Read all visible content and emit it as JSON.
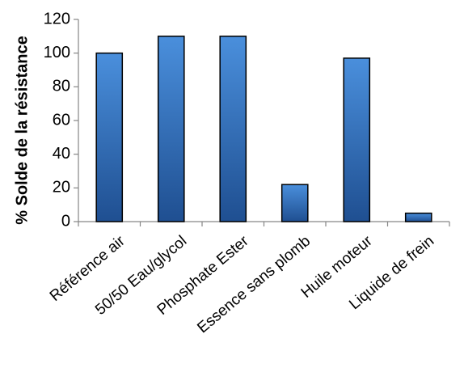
{
  "chart_data": {
    "type": "bar",
    "title": "",
    "xlabel": "",
    "ylabel": "% Solde de la résistance",
    "ylim": [
      0,
      120
    ],
    "yticks": [
      0,
      20,
      40,
      60,
      80,
      100,
      120
    ],
    "grid": false,
    "legend": "none",
    "categories": [
      "Référence air",
      "50/50 Eau/glycol",
      "Phosphate Ester",
      "Essence sans plomb",
      "Huile moteur",
      "Liquide de frein"
    ],
    "values": [
      100,
      110,
      110,
      22,
      97,
      5
    ],
    "colors": {
      "bar_top": "#4a8fdc",
      "bar_bottom": "#1f4f91",
      "bar_outline": "#000000",
      "axis": "#868686"
    }
  }
}
